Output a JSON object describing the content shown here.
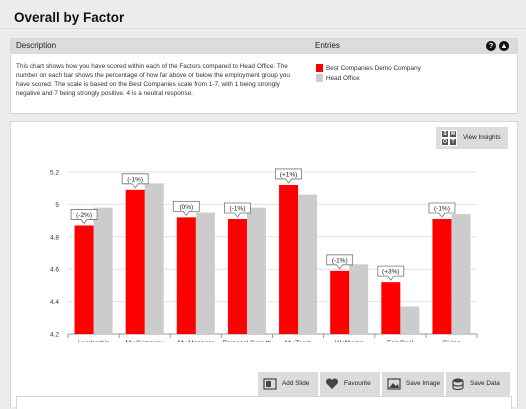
{
  "page": {
    "title": "Overall by Factor"
  },
  "info_panel": {
    "description_heading": "Description",
    "entries_heading": "Entries",
    "description": "This chart shows how you have scored within each of the Factors compared to Head Office. The number on each bar shows the percentage of how far above or below the employment group you have scored. The scale is based on the Best Companies scale from 1-7, with 1 being strongly negative and 7 being strongly positive. 4 is a neutral response.",
    "help_icon": "question-icon",
    "collapse_icon": "chevron-up-icon",
    "entries": [
      {
        "label": "Best Companies Demo Company",
        "color": "#ff0000"
      },
      {
        "label": "Head Office",
        "color": "#cccccc"
      }
    ]
  },
  "insights_button": {
    "label": "View Insights",
    "icon": "swot-icon",
    "icon_letters": [
      "S",
      "W",
      "O",
      "T"
    ]
  },
  "actions": [
    {
      "label": "Add Slide",
      "icon": "slide-icon"
    },
    {
      "label": "Favourite",
      "icon": "heart-icon"
    },
    {
      "label": "Save Image",
      "icon": "image-icon"
    },
    {
      "label": "Save Data",
      "icon": "database-icon"
    }
  ],
  "chart_data": {
    "type": "bar",
    "title": "",
    "xlabel": "",
    "ylabel": "",
    "ylim": [
      4.2,
      5.2
    ],
    "yticks": [
      "4.2",
      "4.4",
      "4.6",
      "4.8",
      "5",
      "5.2"
    ],
    "grid": true,
    "categories": [
      "Leadership",
      "My Company",
      "My Manager",
      "Personal Growth",
      "My Team",
      "Wellbeing",
      "Fair Deal",
      "Giving Something Back"
    ],
    "series": [
      {
        "name": "Best Companies Demo Company",
        "color": "#ff0000",
        "values": [
          4.87,
          5.09,
          4.92,
          4.91,
          5.12,
          4.59,
          4.52,
          4.91
        ]
      },
      {
        "name": "Head Office",
        "color": "#cccccc",
        "values": [
          4.98,
          5.13,
          4.95,
          4.98,
          5.06,
          4.63,
          4.37,
          4.94
        ]
      }
    ],
    "data_labels": [
      "(-2%)",
      "(-1%)",
      "(0%)",
      "(-1%)",
      "(+1%)",
      "(-1%)",
      "(+3%)",
      "(-1%)"
    ]
  }
}
